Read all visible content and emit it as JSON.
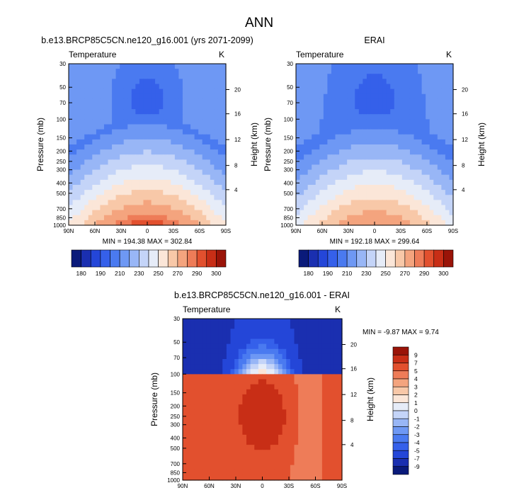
{
  "figure": {
    "title": "ANN"
  },
  "colors": {
    "abs_palette": [
      "#0a1a7a",
      "#1a2fb0",
      "#2446d8",
      "#3560ea",
      "#4a7af0",
      "#6e98f4",
      "#98b6f6",
      "#c4d4f8",
      "#e6ecf8",
      "#fbe6d8",
      "#f8c8a8",
      "#f4a47e",
      "#ee7c58",
      "#e2502e",
      "#c82e16",
      "#9a1408"
    ],
    "diff_palette": [
      "#0a1a7a",
      "#1a2fb0",
      "#2446d8",
      "#3560ea",
      "#4a7af0",
      "#6e98f4",
      "#98b6f6",
      "#c4d4f8",
      "#e6ecf8",
      "#fbe6d8",
      "#f8c8a8",
      "#f4a47e",
      "#ee7c58",
      "#e2502e",
      "#c82e16",
      "#9a1408"
    ]
  },
  "chart_data": [
    {
      "id": "model",
      "type": "heatmap",
      "title": "b.e13.BRCP85C5CN.ne120_g16.001 (yrs 2071-2099)",
      "subtitle_left": "Temperature",
      "subtitle_right": "K",
      "xlabel": "",
      "ylabel": "Pressure (mb)",
      "ylabel_right": "Height (km)",
      "x_ticks": [
        "90N",
        "60N",
        "30N",
        "0",
        "30S",
        "60S",
        "90S"
      ],
      "y_ticks": [
        "30",
        "50",
        "70",
        "100",
        "150",
        "200",
        "250",
        "300",
        "400",
        "500",
        "700",
        "850",
        "1000"
      ],
      "y_ticks_right": [
        "20",
        "16",
        "12",
        "8",
        "4"
      ],
      "stats": "MIN = 194.38  MAX = 302.84",
      "min": 194.38,
      "max": 302.84,
      "colorbar_labels": [
        "180",
        "190",
        "210",
        "230",
        "250",
        "270",
        "290",
        "300"
      ]
    },
    {
      "id": "obs",
      "type": "heatmap",
      "title": "ERAI",
      "subtitle_left": "Temperature",
      "subtitle_right": "K",
      "ylabel": "Pressure (mb)",
      "ylabel_right": "Height (km)",
      "x_ticks": [
        "90N",
        "60N",
        "30N",
        "0",
        "30S",
        "60S",
        "90S"
      ],
      "y_ticks": [
        "30",
        "50",
        "70",
        "100",
        "150",
        "200",
        "250",
        "300",
        "400",
        "500",
        "700",
        "850",
        "1000"
      ],
      "y_ticks_right": [
        "20",
        "16",
        "12",
        "8",
        "4"
      ],
      "stats": "MIN = 192.18  MAX = 299.64",
      "min": 192.18,
      "max": 299.64,
      "colorbar_labels": [
        "180",
        "190",
        "210",
        "230",
        "250",
        "270",
        "290",
        "300"
      ]
    },
    {
      "id": "diff",
      "type": "heatmap",
      "title": "b.e13.BRCP85C5CN.ne120_g16.001 - ERAI",
      "subtitle_left": "Temperature",
      "subtitle_right": "K",
      "ylabel": "Pressure (mb)",
      "ylabel_right": "Height (km)",
      "x_ticks": [
        "90N",
        "60N",
        "30N",
        "0",
        "30S",
        "60S",
        "90S"
      ],
      "y_ticks": [
        "30",
        "50",
        "70",
        "100",
        "150",
        "200",
        "250",
        "300",
        "400",
        "500",
        "700",
        "850",
        "1000"
      ],
      "y_ticks_right": [
        "20",
        "16",
        "12",
        "8",
        "4"
      ],
      "stats": "MIN = -9.87  MAX =  9.74",
      "min": -9.87,
      "max": 9.74,
      "colorbar_labels": [
        "9",
        "7",
        "5",
        "4",
        "3",
        "2",
        "1",
        "0",
        "-1",
        "-2",
        "-3",
        "-4",
        "-5",
        "-7",
        "-9"
      ]
    }
  ]
}
